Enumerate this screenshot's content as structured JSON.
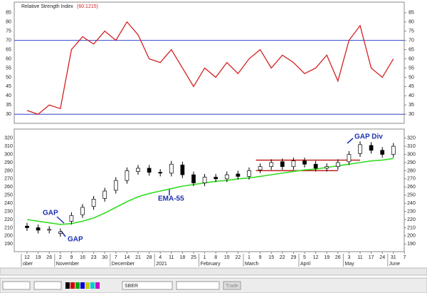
{
  "chart_data": [
    {
      "type": "line",
      "title": "Relative Strength Index",
      "subtitle": "(60.1215)",
      "color": "#d42020",
      "values": [
        32,
        30,
        35,
        33,
        65,
        72,
        68,
        75,
        70,
        80,
        73,
        60,
        58,
        65,
        55,
        45,
        55,
        50,
        58,
        52,
        60,
        65,
        55,
        62,
        58,
        52,
        55,
        62,
        48,
        70,
        78,
        55,
        50,
        60,
        null
      ],
      "reference_lines": [
        30,
        70
      ],
      "reference_color": "#3344cc",
      "ylim": [
        27,
        88
      ],
      "yticks": [
        30,
        35,
        40,
        45,
        50,
        55,
        60,
        65,
        70,
        75,
        80,
        85
      ]
    },
    {
      "type": "candlestick",
      "categories": [
        "12",
        "19",
        "26",
        "2",
        "9",
        "16",
        "23",
        "30",
        "7",
        "14",
        "21",
        "28",
        "4",
        "11",
        "18",
        "25",
        "1",
        "8",
        "15",
        "22",
        "1",
        "9",
        "15",
        "22",
        "29",
        "5",
        "12",
        "19",
        "26",
        "3",
        "11",
        "17",
        "24",
        "31",
        "7"
      ],
      "months": [
        {
          "label": "ober",
          "category": 0
        },
        {
          "label": "November",
          "category": 3
        },
        {
          "label": "December",
          "category": 8
        },
        {
          "label": "2021",
          "category": 12
        },
        {
          "label": "February",
          "category": 16
        },
        {
          "label": "March",
          "category": 20
        },
        {
          "label": "April",
          "category": 25
        },
        {
          "label": "May",
          "category": 29
        },
        {
          "label": "June",
          "category": 33
        }
      ],
      "open": [
        212,
        210,
        207,
        203,
        218,
        226,
        236,
        246,
        256,
        268,
        279,
        283,
        278,
        277,
        287,
        275,
        265,
        272,
        270,
        276,
        273,
        281,
        285,
        291,
        285,
        292,
        288,
        283,
        285,
        291,
        301,
        311,
        305,
        300,
        null
      ],
      "high": [
        216,
        214,
        212,
        209,
        229,
        239,
        249,
        259,
        272,
        284,
        287,
        287,
        282,
        292,
        291,
        279,
        276,
        276,
        279,
        280,
        284,
        289,
        294,
        295,
        296,
        296,
        292,
        289,
        294,
        304,
        316,
        315,
        309,
        314,
        null
      ],
      "low": [
        206,
        203,
        203,
        199,
        214,
        222,
        232,
        242,
        252,
        264,
        275,
        274,
        273,
        273,
        271,
        261,
        261,
        266,
        266,
        269,
        269,
        277,
        281,
        281,
        281,
        284,
        279,
        279,
        281,
        287,
        297,
        301,
        296,
        296,
        null
      ],
      "close": [
        210,
        207,
        208,
        205,
        225,
        235,
        245,
        255,
        268,
        280,
        283,
        278,
        277,
        288,
        275,
        265,
        272,
        270,
        275,
        273,
        280,
        285,
        290,
        285,
        292,
        288,
        283,
        285,
        290,
        300,
        312,
        305,
        300,
        310,
        null
      ],
      "ema": {
        "values": [
          220,
          218,
          216,
          214,
          215,
          218,
          222,
          228,
          235,
          242,
          248,
          252,
          255,
          258,
          261,
          263,
          265,
          267,
          268,
          270,
          271,
          273,
          275,
          277,
          279,
          281,
          282,
          284,
          286,
          288,
          290,
          292,
          293,
          295,
          null
        ],
        "color": "#33dd22"
      },
      "levels": [
        293,
        280
      ],
      "level_color": "#c02020",
      "annotations": [
        "GAP",
        "GAP",
        "EMA-55",
        "GAP Div"
      ],
      "ylim": [
        185,
        325
      ],
      "yticks": [
        190,
        200,
        210,
        220,
        230,
        240,
        250,
        260,
        270,
        280,
        290,
        300,
        310,
        320
      ]
    }
  ],
  "toolbar": {
    "symbol": "SBER",
    "button": "Trade"
  }
}
